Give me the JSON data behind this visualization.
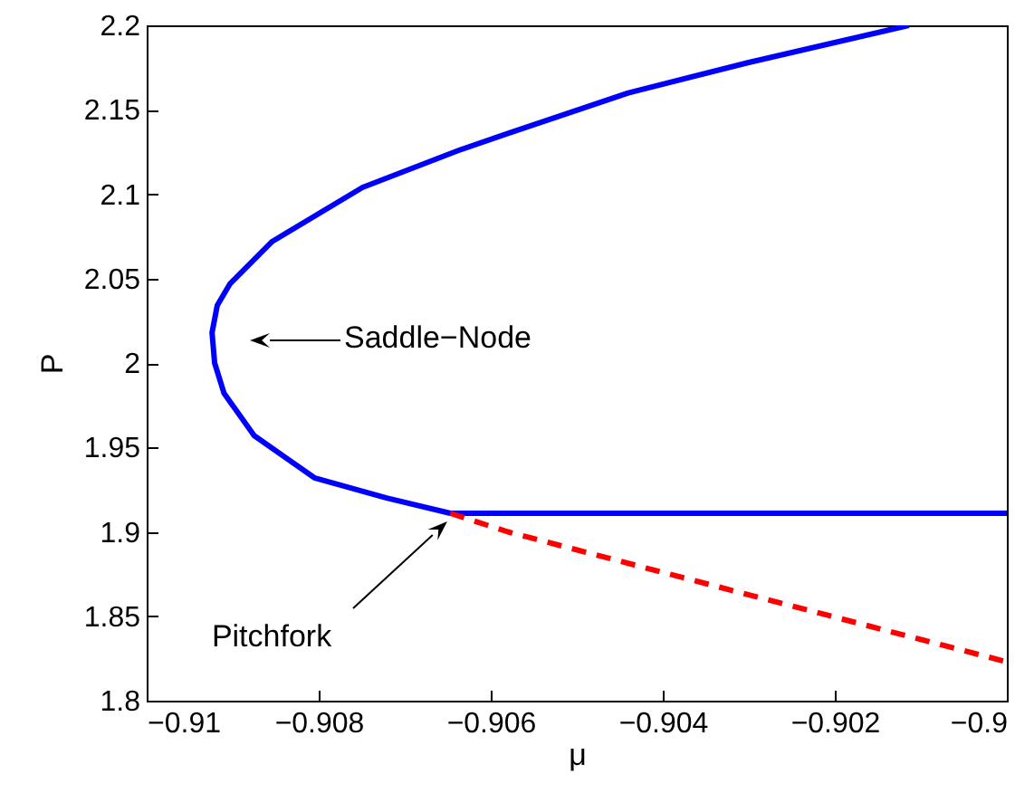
{
  "chart_data": {
    "type": "line",
    "xlabel": "μ",
    "ylabel": "P",
    "xlim": [
      -0.91,
      -0.9
    ],
    "xticks": [
      -0.91,
      -0.908,
      -0.906,
      -0.904,
      -0.902,
      -0.9
    ],
    "ylim": [
      1.8,
      2.2
    ],
    "yticks": [
      1.8,
      1.85,
      1.9,
      1.95,
      2,
      2.05,
      2.1,
      2.15,
      2.2
    ],
    "grid": false,
    "marker": "none",
    "series": [
      {
        "color": "#0000ff",
        "line_style": "solid",
        "x": [
          -0.90114,
          -0.903,
          -0.9044,
          -0.9058,
          -0.90637,
          -0.90749,
          -0.90854,
          -0.90903,
          -0.90918,
          -0.90924,
          -0.90921,
          -0.9091,
          -0.90875,
          -0.90805,
          -0.90721,
          -0.90647,
          -0.9
        ],
        "values": [
          2.2,
          2.178,
          2.16,
          2.136,
          2.126,
          2.104,
          2.072,
          2.047,
          2.034,
          2.018,
          2.0,
          1.982,
          1.957,
          1.932,
          1.92,
          1.911,
          1.911
        ]
      },
      {
        "color": "#ff0000",
        "line_style": "dashed",
        "x": [
          -0.90647,
          -0.9058,
          -0.9037,
          -0.9
        ],
        "values": [
          1.911,
          1.9,
          1.872,
          1.823
        ]
      }
    ],
    "annotations": [
      "Saddle−Node",
      "Pitchfork"
    ]
  }
}
